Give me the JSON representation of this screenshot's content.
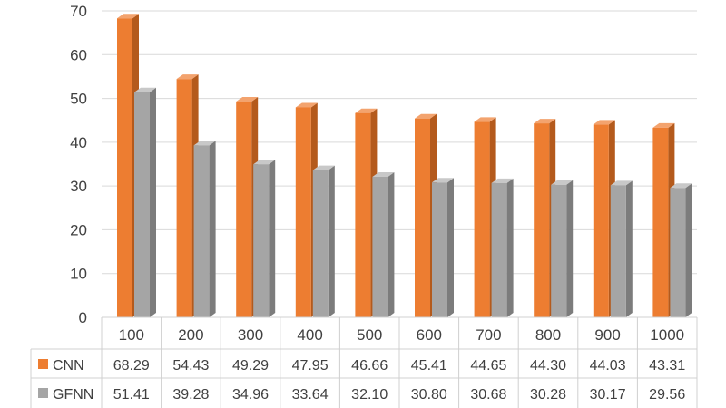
{
  "chart_data": {
    "type": "bar",
    "style": "3d-clustered-column-with-data-table",
    "title": "",
    "xlabel": "",
    "ylabel": "",
    "categories": [
      "100",
      "200",
      "300",
      "400",
      "500",
      "600",
      "700",
      "800",
      "900",
      "1000"
    ],
    "ylim": [
      0,
      70
    ],
    "yticks": [
      0,
      10,
      20,
      30,
      40,
      50,
      60,
      70
    ],
    "grid": true,
    "legend": "data-table-left",
    "series": [
      {
        "name": "CNN",
        "color": "#ED7D31",
        "values": [
          68.29,
          54.43,
          49.29,
          47.95,
          46.66,
          45.41,
          44.65,
          44.3,
          44.03,
          43.31
        ],
        "labels": [
          "68.29",
          "54.43",
          "49.29",
          "47.95",
          "46.66",
          "45.41",
          "44.65",
          "44.30",
          "44.03",
          "43.31"
        ]
      },
      {
        "name": "GFNN",
        "color": "#A5A5A5",
        "values": [
          51.41,
          39.28,
          34.96,
          33.64,
          32.1,
          30.8,
          30.68,
          30.28,
          30.17,
          29.56
        ],
        "labels": [
          "51.41",
          "39.28",
          "34.96",
          "33.64",
          "32.10",
          "30.80",
          "30.68",
          "30.28",
          "30.17",
          "29.56"
        ]
      }
    ]
  }
}
